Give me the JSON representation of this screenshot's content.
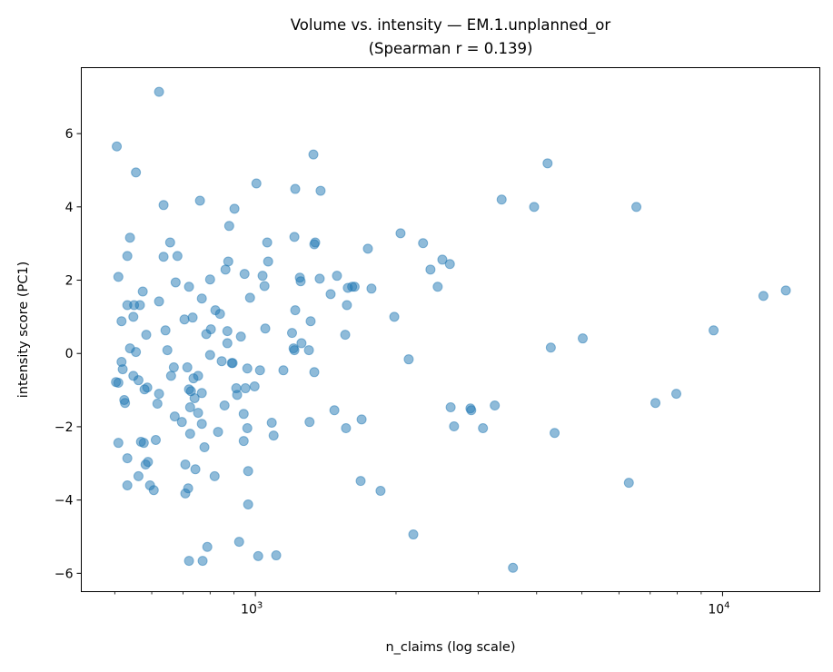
{
  "chart_data": {
    "type": "scatter",
    "title": "Volume vs. intensity — EM.1.unplanned_or",
    "subtitle": "(Spearman r = 0.139)",
    "xlabel": "n_claims (log scale)",
    "ylabel": "intensity score (PC1)",
    "xscale": "log",
    "xlim": [
      424,
      16150
    ],
    "ylim": [
      -6.5,
      7.8
    ],
    "xticks": [
      {
        "value": 1000,
        "base": "10",
        "exp": "3"
      },
      {
        "value": 10000,
        "base": "10",
        "exp": "4"
      }
    ],
    "yticks": [
      {
        "value": 6,
        "label": "6"
      },
      {
        "value": 4,
        "label": "4"
      },
      {
        "value": 2,
        "label": "2"
      },
      {
        "value": 0,
        "label": "0"
      },
      {
        "value": -2,
        "label": "−2"
      },
      {
        "value": -4,
        "label": "−4"
      },
      {
        "value": -6,
        "label": "−6"
      }
    ],
    "grid": false,
    "marker_color": "#1f77b4",
    "marker_alpha": 0.5,
    "points": [
      [
        503,
        -0.78
      ],
      [
        505,
        5.65
      ],
      [
        509,
        -2.44
      ],
      [
        509,
        -0.8
      ],
      [
        517,
        -0.23
      ],
      [
        517,
        0.88
      ],
      [
        509,
        2.09
      ],
      [
        520,
        -0.43
      ],
      [
        524,
        -1.27
      ],
      [
        526,
        -1.35
      ],
      [
        532,
        2.66
      ],
      [
        532,
        1.32
      ],
      [
        532,
        -2.86
      ],
      [
        532,
        -3.6
      ],
      [
        539,
        3.16
      ],
      [
        539,
        0.14
      ],
      [
        548,
        1.0
      ],
      [
        550,
        1.32
      ],
      [
        548,
        -0.61
      ],
      [
        555,
        4.94
      ],
      [
        555,
        0.04
      ],
      [
        562,
        -0.73
      ],
      [
        562,
        -3.35
      ],
      [
        566,
        1.32
      ],
      [
        569,
        -2.41
      ],
      [
        574,
        1.69
      ],
      [
        577,
        -2.44
      ],
      [
        579,
        -0.98
      ],
      [
        582,
        -3.03
      ],
      [
        584,
        0.51
      ],
      [
        587,
        -0.93
      ],
      [
        589,
        -2.96
      ],
      [
        595,
        -3.6
      ],
      [
        606,
        -3.73
      ],
      [
        612,
        -2.36
      ],
      [
        617,
        -1.37
      ],
      [
        622,
        -1.1
      ],
      [
        622,
        7.14
      ],
      [
        622,
        1.42
      ],
      [
        636,
        4.05
      ],
      [
        636,
        2.64
      ],
      [
        642,
        0.63
      ],
      [
        648,
        0.09
      ],
      [
        657,
        3.03
      ],
      [
        660,
        -0.61
      ],
      [
        669,
        -0.38
      ],
      [
        672,
        -1.72
      ],
      [
        675,
        1.94
      ],
      [
        681,
        2.66
      ],
      [
        696,
        -1.87
      ],
      [
        705,
        0.93
      ],
      [
        708,
        -3.03
      ],
      [
        708,
        -3.82
      ],
      [
        715,
        -0.38
      ],
      [
        718,
        -3.68
      ],
      [
        721,
        1.82
      ],
      [
        721,
        -0.98
      ],
      [
        725,
        -1.47
      ],
      [
        725,
        -2.19
      ],
      [
        728,
        -1.03
      ],
      [
        721,
        -5.66
      ],
      [
        734,
        0.98
      ],
      [
        737,
        -0.68
      ],
      [
        741,
        -1.22
      ],
      [
        744,
        -3.16
      ],
      [
        754,
        -1.62
      ],
      [
        754,
        -0.61
      ],
      [
        761,
        4.17
      ],
      [
        768,
        1.5
      ],
      [
        768,
        -1.08
      ],
      [
        768,
        -1.92
      ],
      [
        771,
        -5.66
      ],
      [
        778,
        -2.56
      ],
      [
        785,
        0.53
      ],
      [
        789,
        -5.28
      ],
      [
        800,
        2.02
      ],
      [
        800,
        -0.04
      ],
      [
        803,
        0.66
      ],
      [
        818,
        -3.35
      ],
      [
        821,
        1.18
      ],
      [
        832,
        -2.14
      ],
      [
        840,
        1.08
      ],
      [
        847,
        -0.21
      ],
      [
        859,
        -1.42
      ],
      [
        863,
        2.29
      ],
      [
        871,
        0.61
      ],
      [
        875,
        2.51
      ],
      [
        871,
        0.28
      ],
      [
        879,
        3.48
      ],
      [
        890,
        -0.26
      ],
      [
        894,
        -0.26
      ],
      [
        902,
        3.95
      ],
      [
        910,
        -0.95
      ],
      [
        914,
        -1.13
      ],
      [
        923,
        -5.14
      ],
      [
        931,
        0.46
      ],
      [
        944,
        -1.65
      ],
      [
        944,
        -2.39
      ],
      [
        948,
        2.17
      ],
      [
        952,
        -0.95
      ],
      [
        961,
        -2.04
      ],
      [
        961,
        -0.41
      ],
      [
        965,
        -3.21
      ],
      [
        965,
        -4.12
      ],
      [
        974,
        1.52
      ],
      [
        996,
        -0.9
      ],
      [
        1005,
        4.64
      ],
      [
        1014,
        -5.53
      ],
      [
        1023,
        -0.46
      ],
      [
        1036,
        2.12
      ],
      [
        1046,
        1.84
      ],
      [
        1050,
        0.68
      ],
      [
        1060,
        3.03
      ],
      [
        1065,
        2.51
      ],
      [
        1084,
        -1.89
      ],
      [
        1094,
        -2.24
      ],
      [
        1108,
        -5.51
      ],
      [
        1148,
        -0.46
      ],
      [
        1198,
        0.56
      ],
      [
        1207,
        0.14
      ],
      [
        1212,
        0.09
      ],
      [
        1212,
        3.18
      ],
      [
        1217,
        1.18
      ],
      [
        1217,
        4.49
      ],
      [
        1245,
        2.07
      ],
      [
        1250,
        1.97
      ],
      [
        1255,
        0.28
      ],
      [
        1302,
        0.09
      ],
      [
        1306,
        -1.87
      ],
      [
        1313,
        0.88
      ],
      [
        1331,
        5.43
      ],
      [
        1337,
        2.98
      ],
      [
        1343,
        3.03
      ],
      [
        1337,
        -0.51
      ],
      [
        1373,
        2.04
      ],
      [
        1379,
        4.44
      ],
      [
        1449,
        1.62
      ],
      [
        1476,
        -1.55
      ],
      [
        1495,
        2.12
      ],
      [
        1557,
        0.51
      ],
      [
        1563,
        -2.04
      ],
      [
        1570,
        1.32
      ],
      [
        1577,
        1.79
      ],
      [
        1611,
        1.82
      ],
      [
        1631,
        1.82
      ],
      [
        1680,
        -3.48
      ],
      [
        1688,
        -1.8
      ],
      [
        1741,
        2.86
      ],
      [
        1772,
        1.77
      ],
      [
        1853,
        -3.75
      ],
      [
        1983,
        1.0
      ],
      [
        2045,
        3.28
      ],
      [
        2129,
        -0.16
      ],
      [
        2178,
        -4.94
      ],
      [
        2285,
        3.01
      ],
      [
        2370,
        2.29
      ],
      [
        2456,
        1.82
      ],
      [
        2513,
        2.56
      ],
      [
        2608,
        2.44
      ],
      [
        2618,
        -1.47
      ],
      [
        2662,
        -1.99
      ],
      [
        2886,
        -1.5
      ],
      [
        2898,
        -1.55
      ],
      [
        3070,
        -2.04
      ],
      [
        3254,
        -1.42
      ],
      [
        3366,
        4.2
      ],
      [
        3559,
        -5.85
      ],
      [
        3950,
        4.0
      ],
      [
        4221,
        5.19
      ],
      [
        4289,
        0.16
      ],
      [
        4370,
        -2.17
      ],
      [
        5020,
        0.41
      ],
      [
        6301,
        -3.53
      ],
      [
        6539,
        4.0
      ],
      [
        7183,
        -1.35
      ],
      [
        7961,
        -1.1
      ],
      [
        9567,
        0.63
      ],
      [
        12230,
        1.57
      ],
      [
        13660,
        1.72
      ]
    ]
  }
}
